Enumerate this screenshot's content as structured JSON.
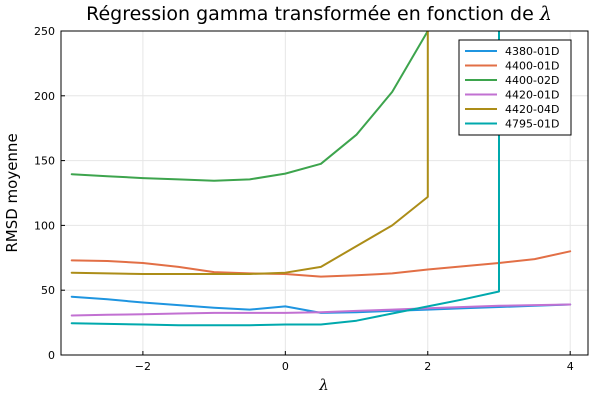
{
  "chart_data": {
    "type": "line",
    "title_text": "Régression gamma transformée en fonction de ",
    "title_symbol": "λ",
    "xlabel": "λ",
    "ylabel": "RMSD moyenne",
    "xlim": [
      -3.15,
      4.25
    ],
    "ylim": [
      0,
      250
    ],
    "xticks": [
      -2,
      0,
      2,
      4
    ],
    "xtick_labels": [
      "−2",
      "0",
      "2",
      "4"
    ],
    "yticks": [
      0,
      50,
      100,
      150,
      200,
      250
    ],
    "ytick_labels": [
      "0",
      "50",
      "100",
      "150",
      "200",
      "250"
    ],
    "grid": true,
    "legend_position": "top-right",
    "series": [
      {
        "name": "4380-01D",
        "color": "#1f95e0",
        "points": [
          [
            -3,
            45
          ],
          [
            -2.5,
            43
          ],
          [
            -2,
            40.5
          ],
          [
            -1.5,
            38.5
          ],
          [
            -1,
            36.5
          ],
          [
            -0.5,
            35
          ],
          [
            0,
            37.5
          ],
          [
            0.5,
            32.5
          ],
          [
            1,
            33
          ],
          [
            1.5,
            34
          ],
          [
            2,
            35
          ],
          [
            2.5,
            36
          ],
          [
            3,
            37
          ],
          [
            3.5,
            38
          ],
          [
            4,
            39
          ]
        ]
      },
      {
        "name": "4400-01D",
        "color": "#e26f46",
        "points": [
          [
            -3,
            73
          ],
          [
            -2.5,
            72.5
          ],
          [
            -2,
            71
          ],
          [
            -1.5,
            68
          ],
          [
            -1,
            64
          ],
          [
            -0.5,
            63
          ],
          [
            0,
            62.5
          ],
          [
            0.5,
            60.5
          ],
          [
            1,
            61.5
          ],
          [
            1.5,
            63
          ],
          [
            2,
            66
          ],
          [
            2.5,
            68.5
          ],
          [
            3,
            71
          ],
          [
            3.5,
            74
          ],
          [
            4,
            80
          ]
        ]
      },
      {
        "name": "4400-02D",
        "color": "#3da44d",
        "points": [
          [
            -3,
            139.5
          ],
          [
            -2.5,
            138
          ],
          [
            -2,
            136.5
          ],
          [
            -1.5,
            135.5
          ],
          [
            -1,
            134.5
          ],
          [
            -0.5,
            135.5
          ],
          [
            0,
            140
          ],
          [
            0.5,
            147.5
          ],
          [
            1,
            170
          ],
          [
            1.5,
            203
          ],
          [
            2,
            250
          ]
        ]
      },
      {
        "name": "4420-01D",
        "color": "#c271d2",
        "points": [
          [
            -3,
            30.5
          ],
          [
            -2.5,
            31
          ],
          [
            -2,
            31.5
          ],
          [
            -1.5,
            32
          ],
          [
            -1,
            32.5
          ],
          [
            -0.5,
            32.5
          ],
          [
            0,
            32.5
          ],
          [
            0.5,
            33
          ],
          [
            1,
            34
          ],
          [
            1.5,
            35
          ],
          [
            2,
            36
          ],
          [
            2.5,
            37
          ],
          [
            3,
            38
          ],
          [
            3.5,
            38.5
          ],
          [
            4,
            39
          ]
        ]
      },
      {
        "name": "4420-04D",
        "color": "#ac8d18",
        "points": [
          [
            -3,
            63.5
          ],
          [
            -2.5,
            63
          ],
          [
            -2,
            62.5
          ],
          [
            -1.5,
            62.5
          ],
          [
            -1,
            62.5
          ],
          [
            -0.5,
            62.5
          ],
          [
            0,
            63.5
          ],
          [
            0.5,
            68
          ],
          [
            1,
            84
          ],
          [
            1.5,
            100
          ],
          [
            2,
            122
          ],
          [
            2,
            250
          ]
        ]
      },
      {
        "name": "4795-01D",
        "color": "#00a9ad",
        "points": [
          [
            -3,
            24.5
          ],
          [
            -2.5,
            24
          ],
          [
            -2,
            23.5
          ],
          [
            -1.5,
            23
          ],
          [
            -1,
            23
          ],
          [
            -0.5,
            23
          ],
          [
            0,
            23.5
          ],
          [
            0.5,
            23.5
          ],
          [
            1,
            26.5
          ],
          [
            1.5,
            32
          ],
          [
            2,
            37.5
          ],
          [
            2.5,
            43
          ],
          [
            3,
            49
          ],
          [
            3,
            250
          ]
        ]
      }
    ]
  }
}
